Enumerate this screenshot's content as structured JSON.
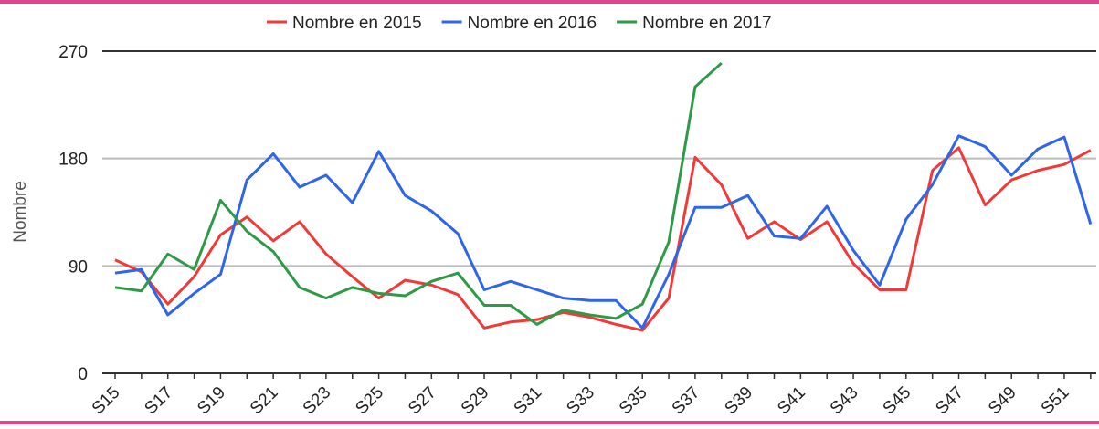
{
  "chart_data": {
    "type": "line",
    "y_label": "Nombre",
    "categories": [
      "S15",
      null,
      "S17",
      null,
      "S19",
      null,
      "S21",
      null,
      "S23",
      null,
      "S25",
      null,
      "S27",
      null,
      "S29",
      null,
      "S31",
      null,
      "S33",
      null,
      "S35",
      null,
      "S37",
      null,
      "S39",
      null,
      "S41",
      null,
      "S43",
      null,
      "S45",
      null,
      "S47",
      null,
      "S49",
      null,
      "S51",
      null
    ],
    "series": [
      {
        "name": "Nombre en 2015",
        "color": "#f03a3a",
        "values": [
          95,
          85,
          58,
          81,
          116,
          131,
          111,
          127,
          100,
          81,
          63,
          78,
          74,
          66,
          38,
          43,
          45,
          51,
          47,
          41,
          36,
          63,
          181,
          158,
          113,
          127,
          112,
          127,
          92,
          70,
          70,
          170,
          189,
          141,
          162,
          170,
          175,
          187
        ]
      },
      {
        "name": "Nombre en 2016",
        "color": "#2f66e8",
        "values": [
          84,
          87,
          49,
          67,
          83,
          162,
          184,
          156,
          166,
          143,
          186,
          149,
          136,
          117,
          70,
          77,
          70,
          63,
          61,
          61,
          38,
          83,
          139,
          139,
          149,
          115,
          113,
          140,
          103,
          74,
          129,
          158,
          199,
          190,
          166,
          188,
          198,
          125
        ]
      },
      {
        "name": "Nombre en 2017",
        "color": "#2e9a47",
        "values": [
          72,
          69,
          100,
          87,
          145,
          119,
          102,
          72,
          63,
          72,
          67,
          65,
          77,
          84,
          57,
          57,
          41,
          53,
          49,
          46,
          58,
          110,
          240,
          260,
          null,
          null,
          null,
          null,
          null,
          null,
          null,
          null,
          null,
          null,
          null,
          null,
          null,
          null
        ]
      }
    ],
    "ylim": [
      0,
      270
    ],
    "yticks": [
      0,
      90,
      180,
      270
    ],
    "grid": true,
    "legend": "top"
  }
}
